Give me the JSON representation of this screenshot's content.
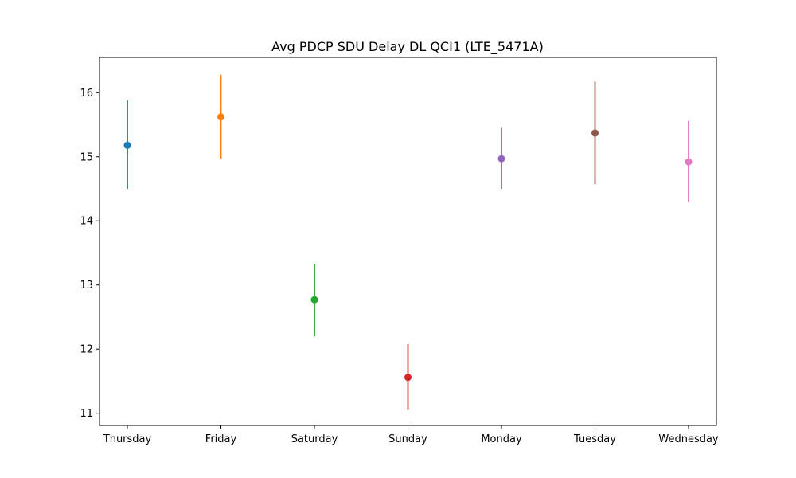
{
  "chart_data": {
    "type": "scatter",
    "title": "Avg PDCP SDU Delay DL QCI1 (LTE_5471A)",
    "xlabel": "",
    "ylabel": "",
    "categories": [
      "Thursday",
      "Friday",
      "Saturday",
      "Sunday",
      "Monday",
      "Tuesday",
      "Wednesday"
    ],
    "values": [
      15.18,
      15.62,
      12.77,
      11.56,
      14.97,
      15.37,
      14.92
    ],
    "error_low": [
      14.5,
      14.97,
      12.2,
      11.05,
      14.5,
      14.57,
      14.3
    ],
    "error_high": [
      15.88,
      16.28,
      13.33,
      12.08,
      15.45,
      16.17,
      15.56
    ],
    "colors": [
      "#1f77b4",
      "#ff7f0e",
      "#2ca02c",
      "#d62728",
      "#9467bd",
      "#8c564b",
      "#e377c2"
    ],
    "yticks": [
      "11",
      "12",
      "13",
      "14",
      "15",
      "16"
    ],
    "ylim": [
      10.81,
      16.55
    ],
    "grid": false,
    "legend": "none"
  }
}
